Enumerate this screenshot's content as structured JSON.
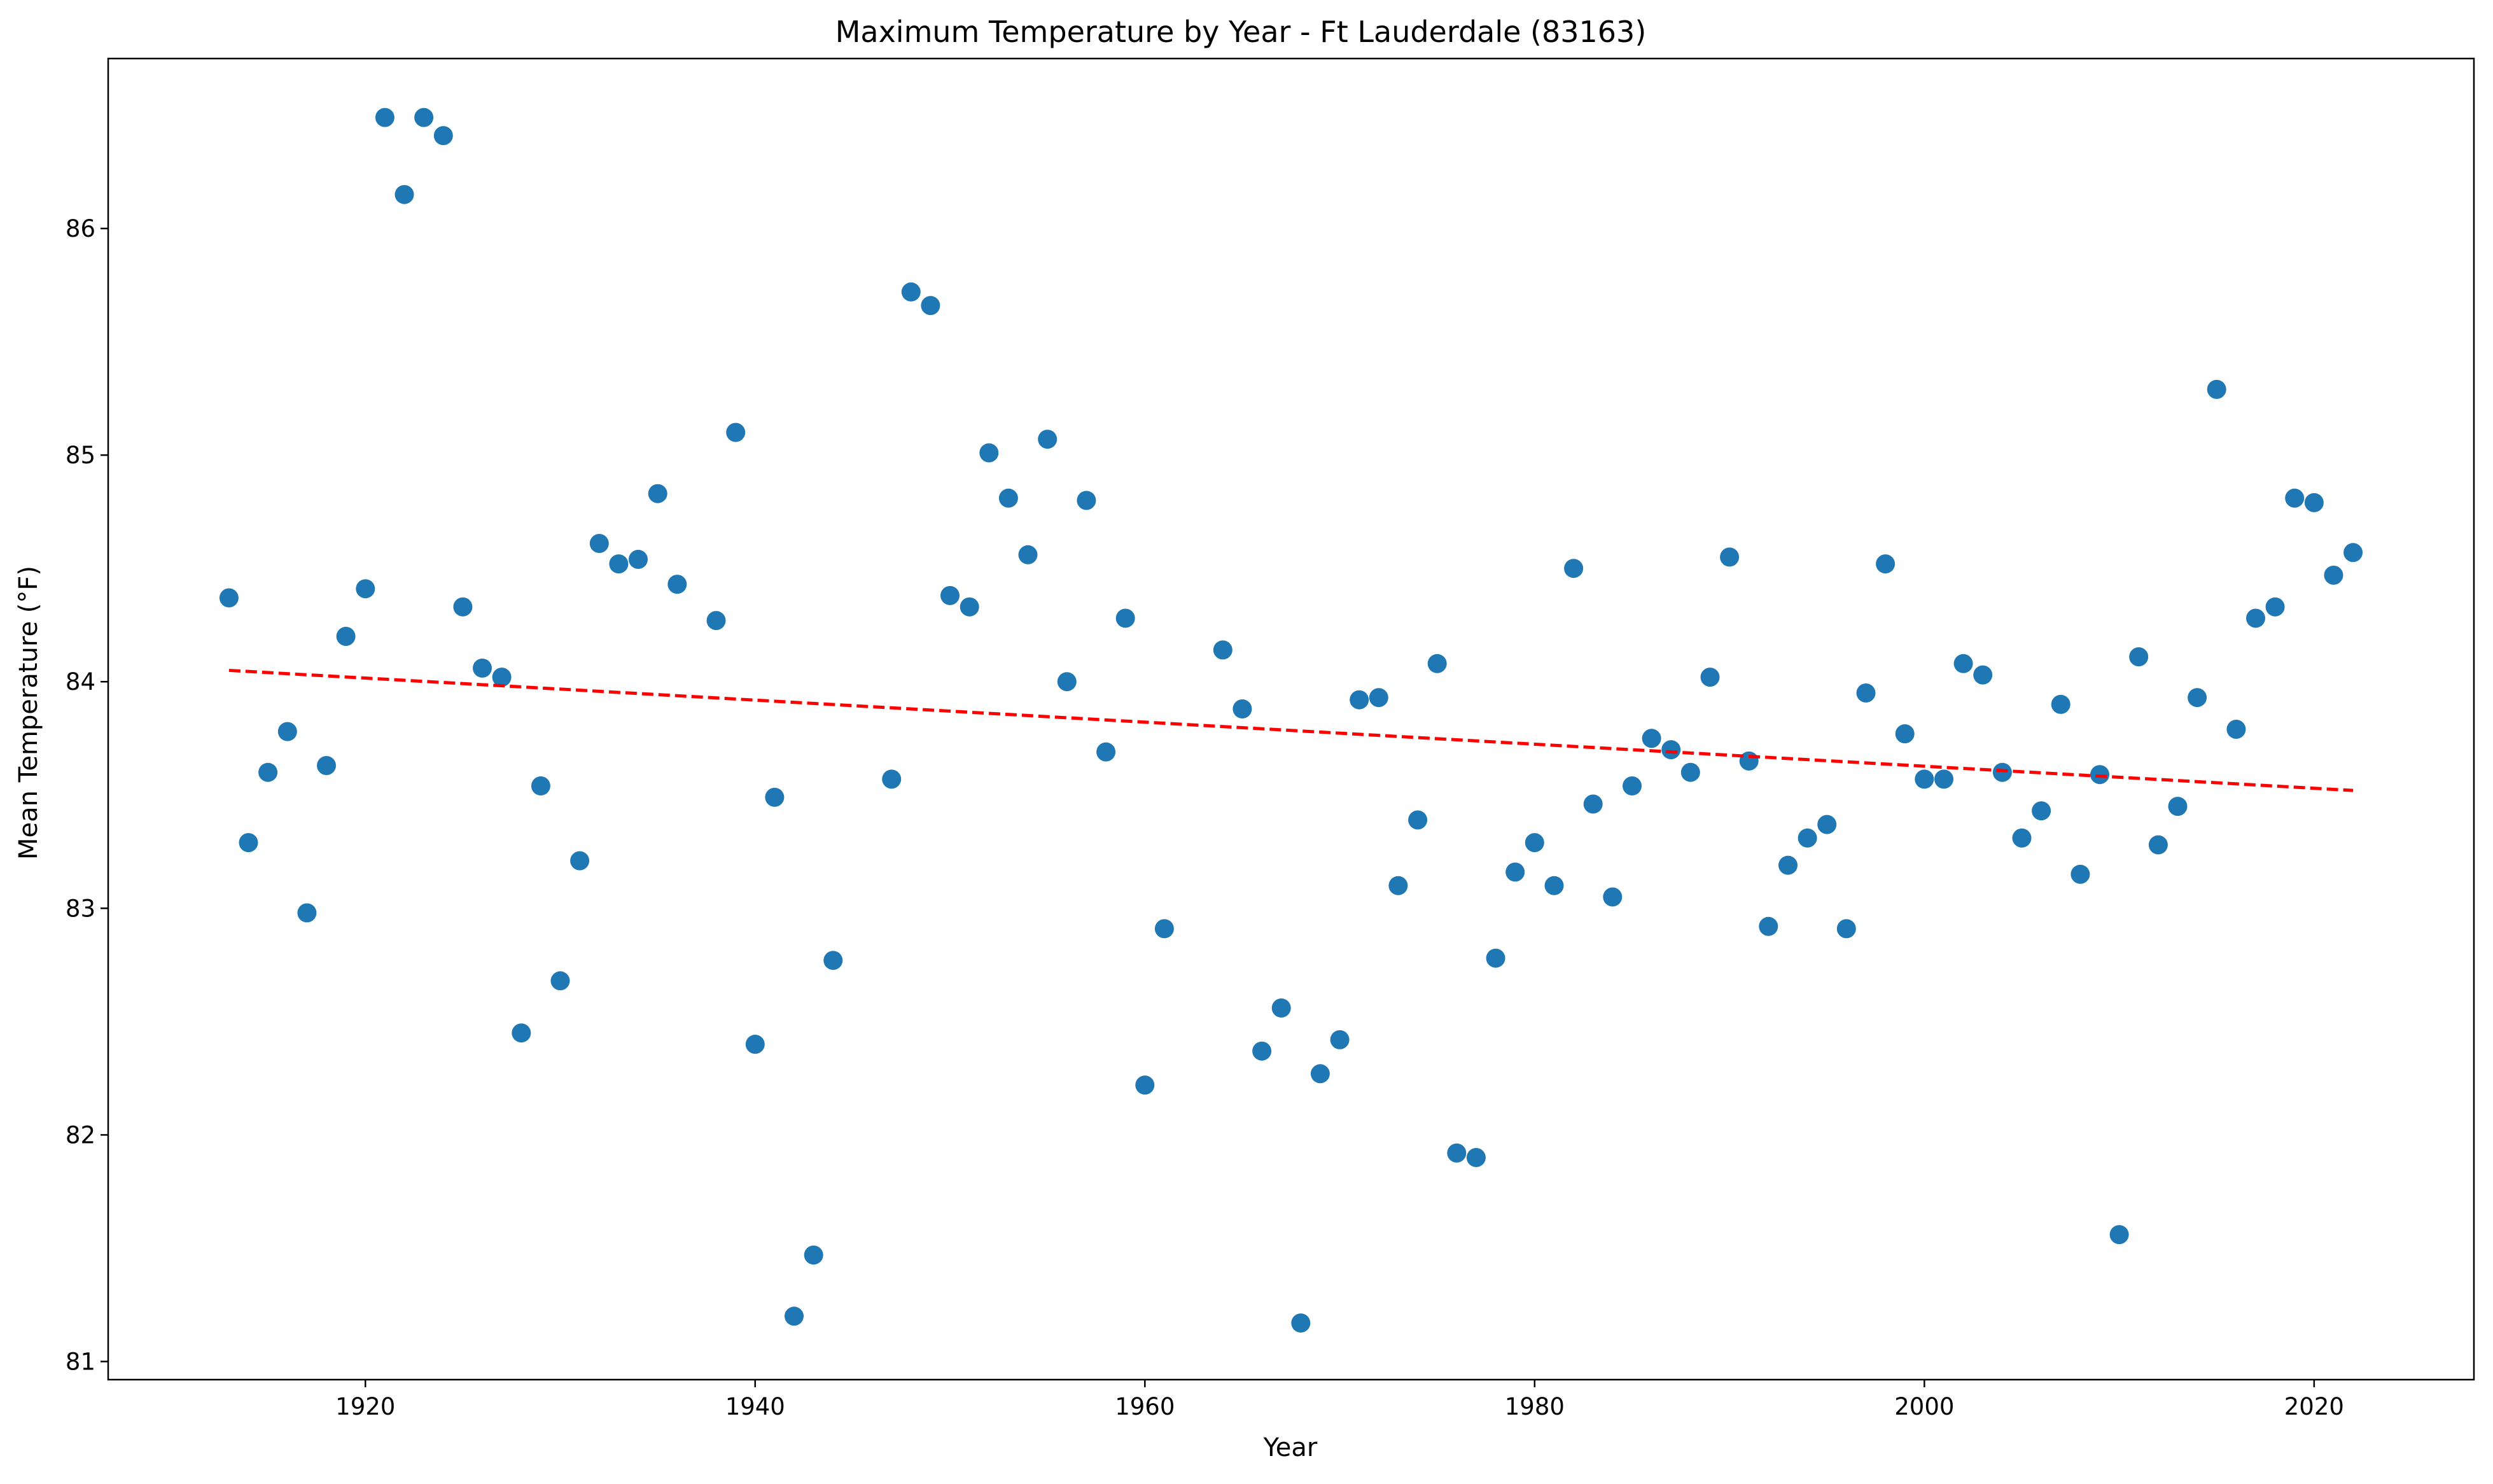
{
  "chart_data": {
    "type": "scatter",
    "title": "Maximum Temperature by Year - Ft Lauderdale (83163)",
    "xlabel": "Year",
    "ylabel": "Mean Temperature (°F)",
    "xlim": [
      1906.8,
      2028.2
    ],
    "ylim": [
      80.92,
      86.75
    ],
    "xticks": [
      1920,
      1940,
      1960,
      1980,
      2000,
      2020
    ],
    "yticks": [
      81,
      82,
      83,
      84,
      85,
      86
    ],
    "grid": false,
    "legend": "none",
    "colors": {
      "points": "#1f77b4",
      "trend": "#ff0000"
    },
    "series": [
      {
        "x": [
          1913,
          1914,
          1915,
          1916,
          1917,
          1918,
          1919,
          1920,
          1921,
          1922,
          1923,
          1924,
          1925,
          1926,
          1927,
          1928,
          1929,
          1930,
          1931,
          1932,
          1933,
          1934,
          1935,
          1936,
          1938,
          1939,
          1940,
          1941,
          1942,
          1943,
          1944,
          1947,
          1948,
          1949,
          1950,
          1951,
          1952,
          1953,
          1954,
          1955,
          1956,
          1957,
          1958,
          1959,
          1960,
          1961,
          1964,
          1965,
          1966,
          1967,
          1968,
          1969,
          1970,
          1971,
          1972,
          1973,
          1974,
          1975,
          1976,
          1977,
          1978,
          1979,
          1980,
          1981,
          1982,
          1983,
          1984,
          1985,
          1986,
          1987,
          1988,
          1989,
          1990,
          1991,
          1992,
          1993,
          1994,
          1995,
          1996,
          1997,
          1998,
          1999,
          2000,
          2001,
          2002,
          2003,
          2004,
          2005,
          2006,
          2007,
          2008,
          2009,
          2010,
          2011,
          2012,
          2013,
          2014,
          2015,
          2016,
          2017,
          2018,
          2019,
          2020,
          2021,
          2022
        ],
        "y": [
          84.37,
          83.29,
          83.6,
          83.78,
          82.98,
          83.63,
          84.2,
          84.41,
          86.49,
          86.15,
          86.49,
          86.41,
          84.33,
          84.06,
          84.02,
          82.45,
          83.54,
          82.68,
          83.21,
          84.61,
          84.52,
          84.54,
          84.83,
          84.43,
          84.27,
          85.1,
          82.4,
          83.49,
          81.2,
          81.47,
          82.77,
          83.57,
          85.72,
          85.66,
          84.38,
          84.33,
          85.01,
          84.81,
          84.56,
          85.07,
          84.0,
          84.8,
          83.69,
          84.28,
          82.22,
          82.91,
          84.14,
          83.88,
          82.37,
          82.56,
          81.17,
          82.27,
          82.42,
          83.92,
          83.93,
          83.1,
          83.39,
          84.08,
          81.92,
          81.9,
          82.78,
          83.16,
          83.29,
          83.1,
          84.5,
          83.46,
          83.05,
          83.54,
          83.75,
          83.7,
          83.6,
          84.02,
          84.55,
          83.65,
          82.92,
          83.19,
          83.31,
          83.37,
          82.91,
          83.95,
          84.52,
          83.77,
          83.57,
          83.57,
          84.08,
          84.03,
          83.6,
          83.31,
          83.43,
          83.9,
          83.15,
          83.59,
          81.56,
          84.11,
          83.28,
          83.45,
          83.93,
          85.29,
          83.79,
          84.28,
          84.33,
          84.81,
          84.79,
          84.47,
          84.57
        ]
      }
    ],
    "trendline": {
      "x": [
        1913,
        2022
      ],
      "y": [
        84.05,
        83.52
      ]
    }
  }
}
